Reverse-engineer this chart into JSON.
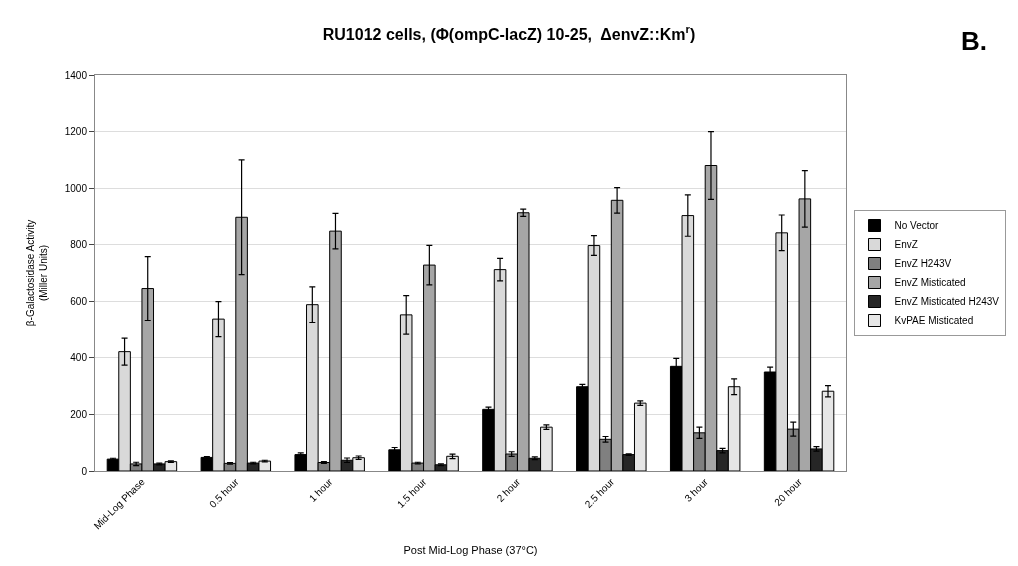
{
  "chart_data": {
    "type": "bar",
    "title": "RU1012 cells, (Φ(ompC-lacZ) 10-25,  ΔenvZ::Km$^{r}$)",
    "xlabel": "Post Mid-Log Phase (37°C)",
    "ylabel": "β-Galactosidase Activity\n(Miller Units)",
    "annotations": [
      "B."
    ],
    "categories": [
      "Mid-Log Phase",
      "0.5 hour",
      "1 hour",
      "1.5 hour",
      "2 hour",
      "2.5 hour",
      "3 hour",
      "20 hour"
    ],
    "series": [
      {
        "name": "No Vector",
        "color": "#000000",
        "values": [
          42,
          48,
          58,
          75,
          218,
          298,
          370,
          350
        ],
        "errors": [
          3,
          3,
          6,
          8,
          8,
          8,
          28,
          17
        ]
      },
      {
        "name": "EnvZ",
        "color": "#d9d9d9",
        "values": [
          422,
          537,
          588,
          552,
          712,
          797,
          903,
          842
        ],
        "errors": [
          48,
          62,
          63,
          68,
          40,
          35,
          73,
          63
        ]
      },
      {
        "name": "EnvZ H243V",
        "color": "#808080",
        "values": [
          25,
          27,
          30,
          28,
          60,
          112,
          135,
          148
        ],
        "errors": [
          6,
          3,
          3,
          3,
          8,
          10,
          20,
          25
        ]
      },
      {
        "name": "EnvZ Misticated",
        "color": "#a6a6a6",
        "values": [
          645,
          897,
          848,
          728,
          913,
          957,
          1080,
          962
        ],
        "errors": [
          113,
          203,
          63,
          70,
          13,
          45,
          120,
          100
        ]
      },
      {
        "name": "EnvZ Misticated H243V",
        "color": "#262626",
        "values": [
          25,
          28,
          38,
          22,
          45,
          58,
          72,
          78
        ],
        "errors": [
          3,
          3,
          8,
          3,
          5,
          3,
          8,
          8
        ]
      },
      {
        "name": "KvPAE Misticated",
        "color": "#e6e6e6",
        "values": [
          33,
          35,
          47,
          52,
          155,
          240,
          298,
          282
        ],
        "errors": [
          3,
          3,
          6,
          8,
          8,
          8,
          28,
          20
        ]
      }
    ],
    "ylim": [
      0,
      1400
    ],
    "yticks": [
      0,
      200,
      400,
      600,
      800,
      1000,
      1200,
      1400
    ],
    "grid": "y",
    "legend": "right"
  }
}
